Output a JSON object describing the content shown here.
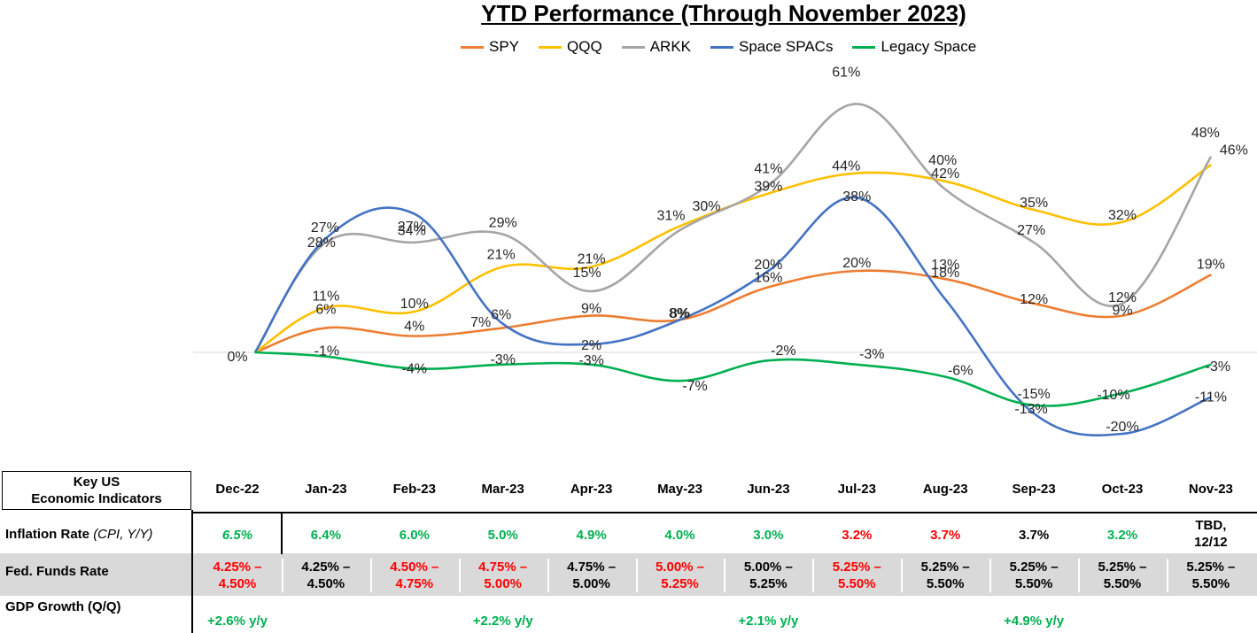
{
  "chart_data": {
    "type": "line",
    "title": "YTD Performance (Through November 2023)",
    "categories": [
      "Dec-22",
      "Jan-23",
      "Feb-23",
      "Mar-23",
      "Apr-23",
      "May-23",
      "Jun-23",
      "Jul-23",
      "Aug-23",
      "Sep-23",
      "Oct-23",
      "Nov-23"
    ],
    "series": [
      {
        "name": "SPY",
        "color": "#ed7d31",
        "values": [
          0,
          6,
          4,
          6,
          9,
          8,
          16,
          20,
          18,
          12,
          9,
          19
        ],
        "labels": [
          "0%",
          "6%",
          "4%",
          "6%",
          "9%",
          "8%",
          "16%",
          "20%",
          "18%",
          "12%",
          "9%",
          "19%"
        ]
      },
      {
        "name": "QQQ",
        "color": "#ffc000",
        "values": [
          0,
          11,
          10,
          21,
          21,
          31,
          39,
          44,
          42,
          35,
          32,
          46
        ],
        "labels": [
          "",
          "11%",
          "10%",
          "21%",
          "21%",
          "31%",
          "39%",
          "44%",
          "42%",
          "35%",
          "32%",
          "46%"
        ]
      },
      {
        "name": "ARKK",
        "color": "#a5a5a5",
        "values": [
          0,
          27,
          27,
          29,
          15,
          30,
          41,
          61,
          40,
          27,
          12,
          48
        ],
        "labels": [
          "",
          "27%",
          "27%",
          "29%",
          "15%",
          "30%",
          "41%",
          "61%",
          "40%",
          "27%",
          "12%",
          "48%"
        ]
      },
      {
        "name": "Space SPACs",
        "color": "#4472c4",
        "values": [
          0,
          28,
          34,
          7,
          2,
          8,
          20,
          38,
          13,
          -15,
          -20,
          -11
        ],
        "labels": [
          "",
          "28%",
          "34%",
          "7%",
          "2%",
          "8%",
          "20%",
          "38%",
          "13%",
          "-15%",
          "-20%",
          "-11%"
        ]
      },
      {
        "name": "Legacy Space",
        "color": "#00b050",
        "values": [
          0,
          -1,
          -4,
          -3,
          -3,
          -7,
          -2,
          -3,
          -6,
          -13,
          -10,
          -3
        ],
        "labels": [
          "",
          "-1%",
          "-4%",
          "-3%",
          "-3%",
          "-7%",
          "-2%",
          "-3%",
          "-6%",
          "-13%",
          "-10%",
          "-3%"
        ]
      }
    ],
    "legend": "top",
    "grid": false
  },
  "indicators": {
    "header": [
      "Key US",
      "Economic Indicators"
    ],
    "months": [
      "Dec-22",
      "Jan-23",
      "Feb-23",
      "Mar-23",
      "Apr-23",
      "May-23",
      "Jun-23",
      "Jul-23",
      "Aug-23",
      "Sep-23",
      "Oct-23",
      "Nov-23"
    ],
    "inflation": {
      "label": "Inflation Rate",
      "label_note": "(CPI, Y/Y)",
      "values": [
        {
          "text": "6.5%",
          "color": "green",
          "italic": true
        },
        {
          "text": "6.4%",
          "color": "green"
        },
        {
          "text": "6.0%",
          "color": "green"
        },
        {
          "text": "5.0%",
          "color": "green"
        },
        {
          "text": "4.9%",
          "color": "green"
        },
        {
          "text": "4.0%",
          "color": "green"
        },
        {
          "text": "3.0%",
          "color": "green"
        },
        {
          "text": "3.2%",
          "color": "red"
        },
        {
          "text": "3.7%",
          "color": "red"
        },
        {
          "text": "3.7%",
          "color": "black"
        },
        {
          "text": "3.2%",
          "color": "green"
        },
        {
          "text": "TBD,",
          "text2": "12/12",
          "color": "black"
        }
      ]
    },
    "fed_funds": {
      "label": "Fed. Funds Rate",
      "values": [
        {
          "l1": "4.25% –",
          "l2": "4.50%",
          "color": "red"
        },
        {
          "l1": "4.25% –",
          "l2": "4.50%",
          "color": "black"
        },
        {
          "l1": "4.50% –",
          "l2": "4.75%",
          "color": "red"
        },
        {
          "l1": "4.75% –",
          "l2": "5.00%",
          "color": "red"
        },
        {
          "l1": "4.75% –",
          "l2": "5.00%",
          "color": "black"
        },
        {
          "l1": "5.00% –",
          "l2": "5.25%",
          "color": "red"
        },
        {
          "l1": "5.00% –",
          "l2": "5.25%",
          "color": "black"
        },
        {
          "l1": "5.25% –",
          "l2": "5.50%",
          "color": "red"
        },
        {
          "l1": "5.25% –",
          "l2": "5.50%",
          "color": "black"
        },
        {
          "l1": "5.25% –",
          "l2": "5.50%",
          "color": "black"
        },
        {
          "l1": "5.25% –",
          "l2": "5.50%",
          "color": "black"
        },
        {
          "l1": "5.25% –",
          "l2": "5.50%",
          "color": "black"
        }
      ]
    },
    "gdp": {
      "label": "GDP Growth (Q/Q)",
      "values": [
        {
          "text": "+2.6% y/y",
          "month": 0
        },
        {
          "text": "+2.2% y/y",
          "month": 3
        },
        {
          "text": "+2.1% y/y",
          "month": 6
        },
        {
          "text": "+4.9% y/y",
          "month": 9
        }
      ]
    }
  }
}
